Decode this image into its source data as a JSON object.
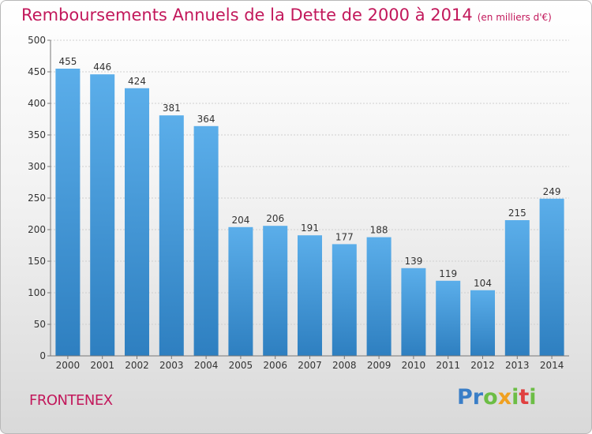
{
  "chart_data": {
    "type": "bar",
    "title": "Remboursements Annuels de la Dette de 2000 à 2014",
    "subtitle": "(en milliers d'€)",
    "categories": [
      "2000",
      "2001",
      "2002",
      "2003",
      "2004",
      "2005",
      "2006",
      "2007",
      "2008",
      "2009",
      "2010",
      "2011",
      "2012",
      "2013",
      "2014"
    ],
    "values": [
      455,
      446,
      424,
      381,
      364,
      204,
      206,
      191,
      177,
      188,
      139,
      119,
      104,
      215,
      249
    ],
    "ylim": [
      0,
      500
    ],
    "yticks": [
      0,
      50,
      100,
      150,
      200,
      250,
      300,
      350,
      400,
      450,
      500
    ],
    "grid": true,
    "colors": {
      "bar_top": "#5baeea",
      "bar_bottom": "#2e7fc0",
      "title": "#c2185b",
      "axis_text": "#333333"
    }
  },
  "footer": {
    "city": "FRONTENEX",
    "logo_letters": [
      "P",
      "r",
      "o",
      "x",
      "i",
      "t",
      "i"
    ],
    "logo_colors": [
      "#3a7ec7",
      "#3a7ec7",
      "#6cbd45",
      "#f0a020",
      "#6cbd45",
      "#e04040",
      "#6cbd45"
    ]
  }
}
